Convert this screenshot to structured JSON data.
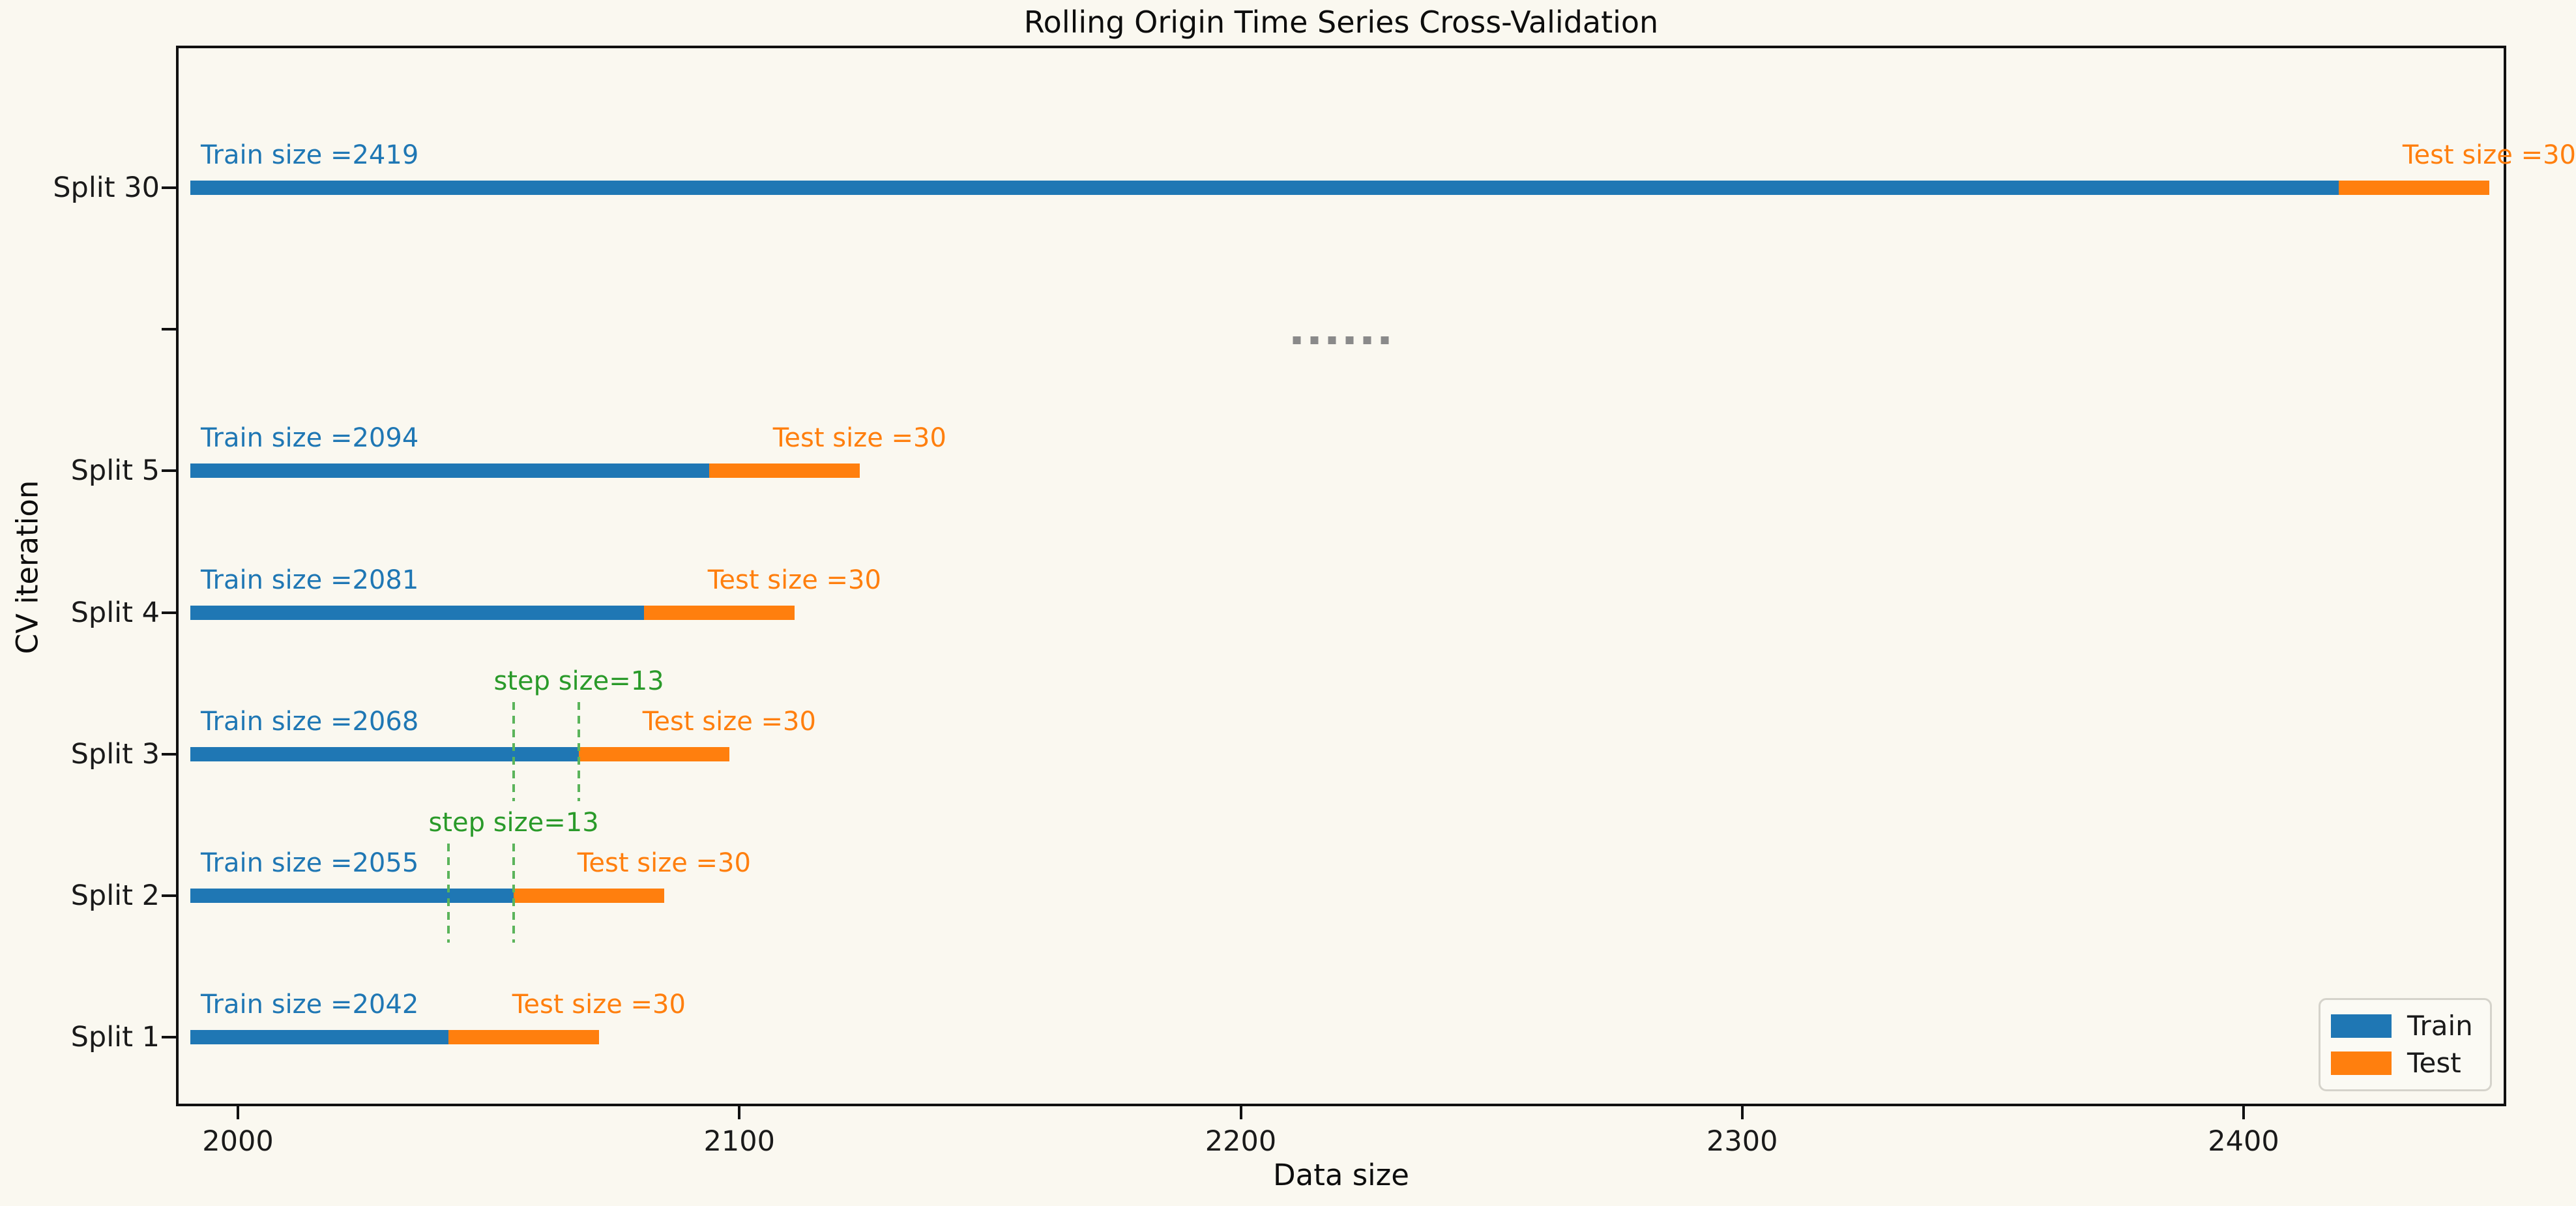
{
  "chart_data": {
    "type": "bar",
    "orientation": "horizontal",
    "title": "Rolling Origin Time Series Cross-Validation",
    "xlabel": "Data size",
    "ylabel": "CV iteration",
    "xlim": [
      1987.7,
      2452.4
    ],
    "xticks": [
      "2000",
      "2100",
      "2200",
      "2300",
      "2400"
    ],
    "xtick_values": [
      2000,
      2100,
      2200,
      2300,
      2400
    ],
    "yticks": [
      "Split 30",
      "",
      "Split 5",
      "Split 4",
      "Split 3",
      "Split 2",
      "Split 1"
    ],
    "grid": false,
    "bars_clipped_left_at": 1990.5,
    "series": [
      {
        "name": "Split 30",
        "row": 0,
        "train_size": 2419,
        "test_size": 30,
        "train_label": "Train size =2419",
        "test_label": "Test size =30"
      },
      {
        "name": "Split 5",
        "row": 2,
        "train_size": 2094,
        "test_size": 30,
        "train_label": "Train size =2094",
        "test_label": "Test size =30"
      },
      {
        "name": "Split 4",
        "row": 3,
        "train_size": 2081,
        "test_size": 30,
        "train_label": "Train size =2081",
        "test_label": "Test size =30"
      },
      {
        "name": "Split 3",
        "row": 4,
        "train_size": 2068,
        "test_size": 30,
        "train_label": "Train size =2068",
        "test_label": "Test size =30"
      },
      {
        "name": "Split 2",
        "row": 5,
        "train_size": 2055,
        "test_size": 30,
        "train_label": "Train size =2055",
        "test_label": "Test size =30"
      },
      {
        "name": "Split 1",
        "row": 6,
        "train_size": 2042,
        "test_size": 30,
        "train_label": "Train size =2042",
        "test_label": "Test size =30"
      }
    ],
    "step_annotations": [
      {
        "label": "step size=13",
        "from": 2055,
        "to": 2068,
        "row": 4
      },
      {
        "label": "step size=13",
        "from": 2042,
        "to": 2055,
        "row": 5
      }
    ],
    "ellipsis": {
      "row": 1,
      "dot_count": 6
    },
    "legend": [
      {
        "label": "Train",
        "color": "#1f77b4"
      },
      {
        "label": "Test",
        "color": "#ff7f0e"
      }
    ],
    "legend_position": "lower right"
  },
  "colors": {
    "background": "#faf8f0",
    "axis": "#111111",
    "tick_text": "#1a1a1a",
    "train": "#1f77b4",
    "test": "#ff7f0e",
    "step_text": "#2a9a2a",
    "step_line": "#5bb45b",
    "dots": "#8a8a8a",
    "legend_border": "#d5d3cb",
    "legend_bg": "#fbfaf4"
  }
}
